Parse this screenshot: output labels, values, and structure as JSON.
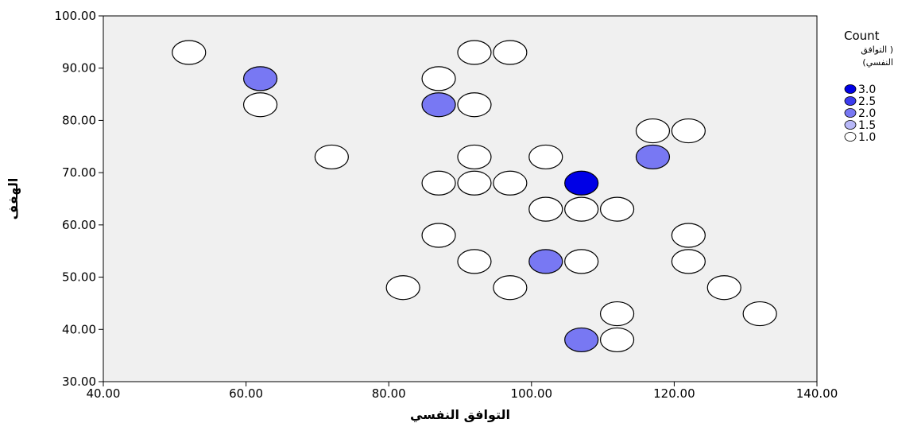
{
  "chart_data": {
    "type": "scatter",
    "xlabel": "التوافق النفسي",
    "ylabel": "الهفف",
    "xlim": [
      40,
      140
    ],
    "ylim": [
      30,
      100
    ],
    "x_ticks": [
      "40.00",
      "60.00",
      "80.00",
      "100.00",
      "120.00",
      "140.00"
    ],
    "y_ticks": [
      "30.00",
      "40.00",
      "50.00",
      "60.00",
      "70.00",
      "80.00",
      "90.00",
      "100.00"
    ],
    "grid": false,
    "legend_position": "right",
    "legend": {
      "title": "Count",
      "subtitle_line1": "التوافق )",
      "subtitle_line2": "(النفسي",
      "entries": [
        {
          "label": "3.0",
          "value": 3.0,
          "color": "#0000e6"
        },
        {
          "label": "2.5",
          "value": 2.5,
          "color": "#3c3cef"
        },
        {
          "label": "2.0",
          "value": 2.0,
          "color": "#7878f3"
        },
        {
          "label": "1.5",
          "value": 1.5,
          "color": "#b8b8f8"
        },
        {
          "label": "1.0",
          "value": 1.0,
          "color": "#ffffff"
        }
      ]
    },
    "points": [
      {
        "x": 52,
        "y": 93,
        "count": 1
      },
      {
        "x": 62,
        "y": 88,
        "count": 2
      },
      {
        "x": 62,
        "y": 83,
        "count": 1
      },
      {
        "x": 72,
        "y": 73,
        "count": 1
      },
      {
        "x": 82,
        "y": 48,
        "count": 1
      },
      {
        "x": 87,
        "y": 88,
        "count": 1
      },
      {
        "x": 87,
        "y": 83,
        "count": 2
      },
      {
        "x": 87,
        "y": 68,
        "count": 1
      },
      {
        "x": 87,
        "y": 58,
        "count": 1
      },
      {
        "x": 92,
        "y": 93,
        "count": 1
      },
      {
        "x": 92,
        "y": 83,
        "count": 1
      },
      {
        "x": 92,
        "y": 73,
        "count": 1
      },
      {
        "x": 92,
        "y": 68,
        "count": 1
      },
      {
        "x": 92,
        "y": 53,
        "count": 1
      },
      {
        "x": 97,
        "y": 93,
        "count": 1
      },
      {
        "x": 97,
        "y": 68,
        "count": 1
      },
      {
        "x": 97,
        "y": 48,
        "count": 1
      },
      {
        "x": 102,
        "y": 73,
        "count": 1
      },
      {
        "x": 102,
        "y": 63,
        "count": 1
      },
      {
        "x": 102,
        "y": 53,
        "count": 2
      },
      {
        "x": 107,
        "y": 68,
        "count": 3
      },
      {
        "x": 107,
        "y": 63,
        "count": 1
      },
      {
        "x": 107,
        "y": 53,
        "count": 1
      },
      {
        "x": 107,
        "y": 38,
        "count": 2
      },
      {
        "x": 112,
        "y": 63,
        "count": 1
      },
      {
        "x": 112,
        "y": 43,
        "count": 1
      },
      {
        "x": 112,
        "y": 38,
        "count": 1
      },
      {
        "x": 117,
        "y": 78,
        "count": 1
      },
      {
        "x": 117,
        "y": 73,
        "count": 2
      },
      {
        "x": 122,
        "y": 78,
        "count": 1
      },
      {
        "x": 122,
        "y": 58,
        "count": 1
      },
      {
        "x": 122,
        "y": 53,
        "count": 1
      },
      {
        "x": 127,
        "y": 48,
        "count": 1
      },
      {
        "x": 132,
        "y": 43,
        "count": 1
      }
    ]
  }
}
